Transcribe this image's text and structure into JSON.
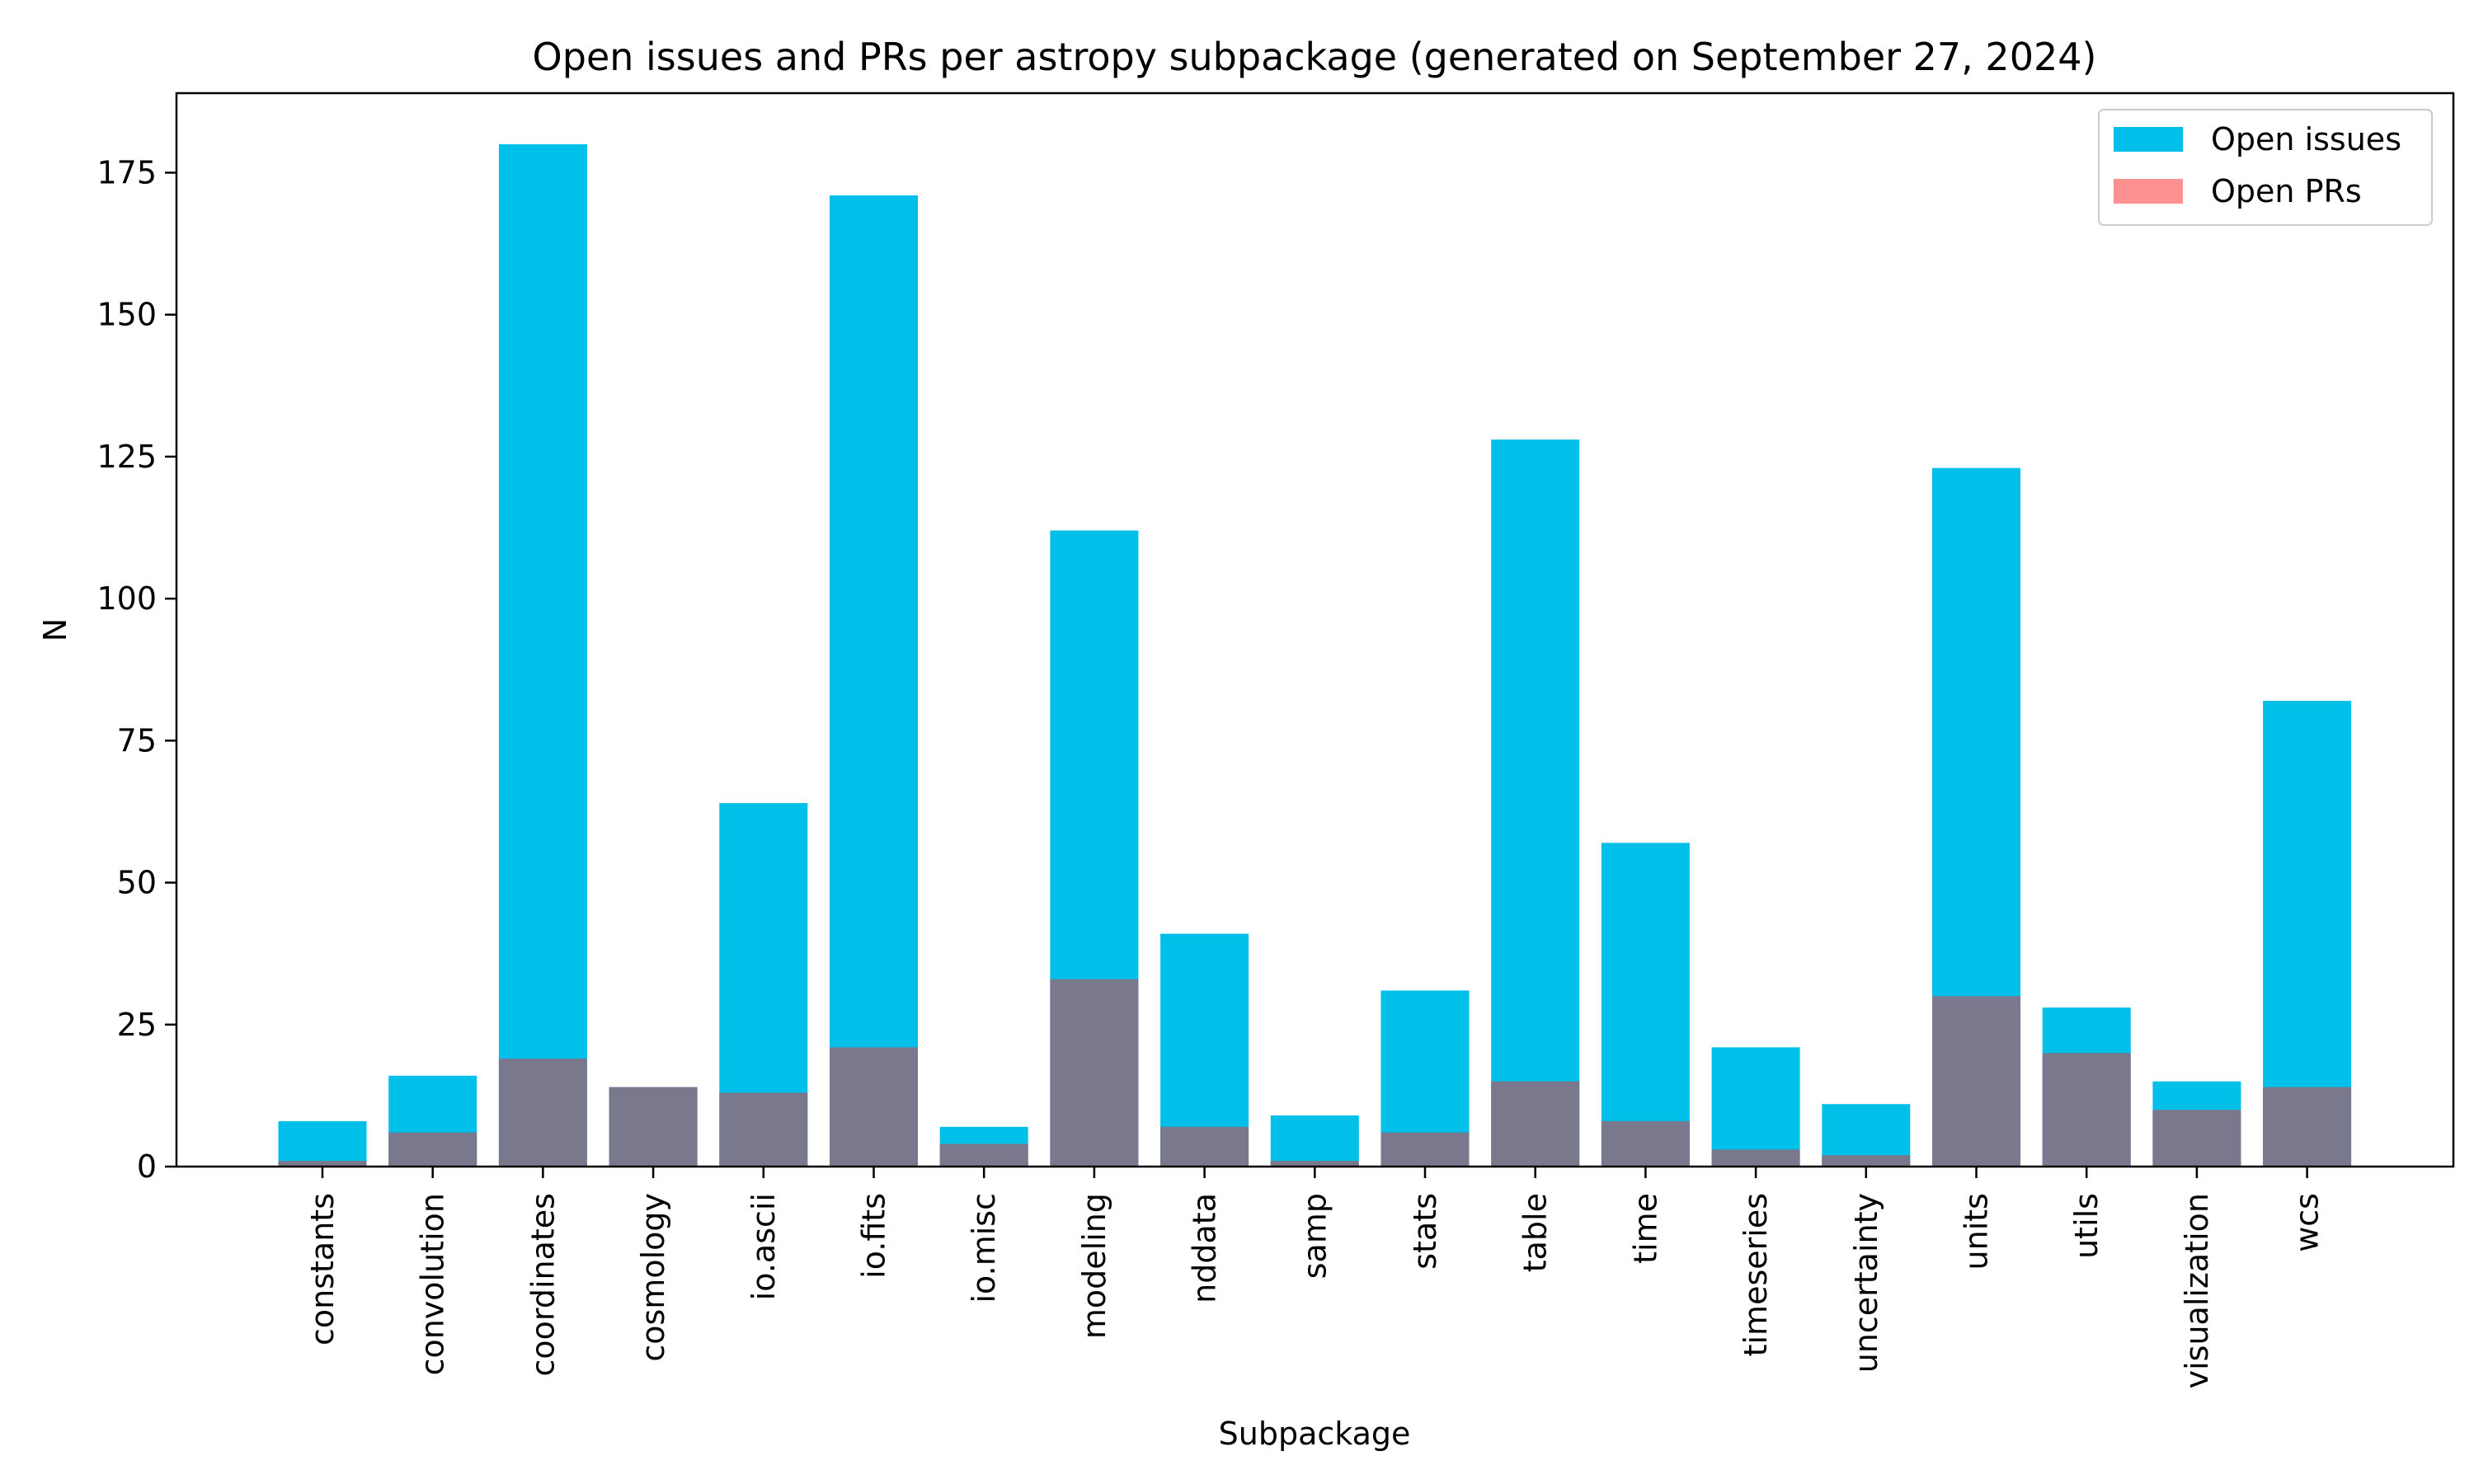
{
  "chart_data": {
    "type": "bar",
    "title": "Open issues and PRs per astropy subpackage (generated on September 27, 2024)",
    "xlabel": "Subpackage",
    "ylabel": "N",
    "ylim": [
      0,
      189
    ],
    "yticks": [
      0,
      25,
      50,
      75,
      100,
      125,
      150,
      175
    ],
    "grid": false,
    "legend_position": "top-right",
    "categories": [
      "constants",
      "convolution",
      "coordinates",
      "cosmology",
      "io.ascii",
      "io.fits",
      "io.misc",
      "modeling",
      "nddata",
      "samp",
      "stats",
      "table",
      "time",
      "timeseries",
      "uncertainty",
      "units",
      "utils",
      "visualization",
      "wcs"
    ],
    "series": [
      {
        "name": "Open issues",
        "color": "#00bfe8",
        "values": [
          8,
          16,
          180,
          14,
          64,
          171,
          7,
          112,
          41,
          9,
          31,
          128,
          57,
          21,
          11,
          123,
          28,
          15,
          82
        ]
      },
      {
        "name": "Open PRs",
        "color": "#ff9090",
        "values": [
          1,
          6,
          19,
          14,
          13,
          21,
          4,
          33,
          7,
          1,
          6,
          15,
          8,
          3,
          2,
          30,
          20,
          10,
          14
        ]
      }
    ],
    "overlap_color": "#7a788c"
  }
}
